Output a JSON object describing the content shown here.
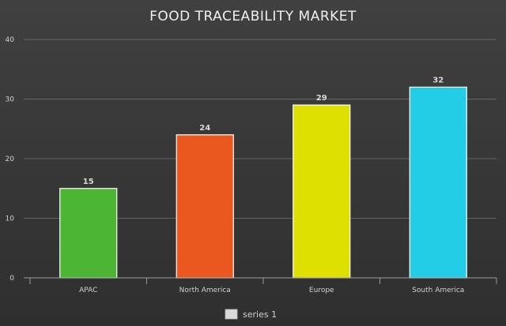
{
  "chart_data": {
    "type": "bar",
    "title": "FOOD TRACEABILITY MARKET",
    "categories": [
      "APAC",
      "North America",
      "Europe",
      "South America"
    ],
    "series": [
      {
        "name": "series 1",
        "values": [
          15,
          24,
          29,
          32
        ],
        "colors": [
          "#4db534",
          "#ea581f",
          "#dde000",
          "#24cde6"
        ]
      }
    ],
    "xlabel": "",
    "ylabel": "",
    "ylim": [
      0,
      40
    ],
    "yticks": [
      0,
      10,
      20,
      30,
      40
    ],
    "grid": true,
    "legend_position": "bottom",
    "legend_color": "#d9d9d9"
  }
}
